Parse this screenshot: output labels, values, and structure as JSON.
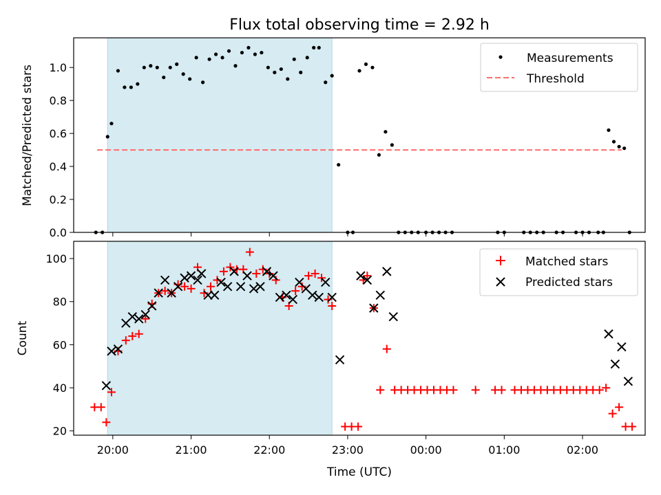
{
  "title": "Flux total observing time = 2.92 h",
  "colors": {
    "shade": "#add8e6",
    "measurement": "#000000",
    "threshold": "#ff6b6b",
    "matched": "#ff0000",
    "predicted": "#000000"
  },
  "chart_data": [
    {
      "type": "scatter",
      "ylabel": "Matched/Predicted stars",
      "ylim": [
        0,
        1.18
      ],
      "yticks": [
        "0.0",
        "0.2",
        "0.4",
        "0.6",
        "0.8",
        "1.0"
      ],
      "xlim": [
        "19:30",
        "02:48"
      ],
      "shaded_interval": [
        "19:56",
        "22:48"
      ],
      "threshold": {
        "value": 0.5,
        "x_range": [
          "19:48",
          "02:30"
        ]
      },
      "legend": {
        "position": "top-right",
        "items": [
          "Measurements",
          "Threshold"
        ]
      },
      "series": [
        {
          "name": "Measurements",
          "points": [
            [
              "19:47",
              0.0
            ],
            [
              "19:52",
              0.0
            ],
            [
              "19:56",
              0.58
            ],
            [
              "19:59",
              0.66
            ],
            [
              "20:04",
              0.98
            ],
            [
              "20:09",
              0.88
            ],
            [
              "20:14",
              0.88
            ],
            [
              "20:19",
              0.9
            ],
            [
              "20:24",
              1.0
            ],
            [
              "20:29",
              1.01
            ],
            [
              "20:34",
              1.0
            ],
            [
              "20:39",
              0.94
            ],
            [
              "20:44",
              1.0
            ],
            [
              "20:49",
              1.02
            ],
            [
              "20:54",
              0.96
            ],
            [
              "20:59",
              0.93
            ],
            [
              "21:04",
              1.06
            ],
            [
              "21:09",
              0.91
            ],
            [
              "21:14",
              1.05
            ],
            [
              "21:19",
              1.08
            ],
            [
              "21:24",
              1.06
            ],
            [
              "21:29",
              1.1
            ],
            [
              "21:34",
              1.01
            ],
            [
              "21:39",
              1.09
            ],
            [
              "21:44",
              1.12
            ],
            [
              "21:49",
              1.08
            ],
            [
              "21:54",
              1.09
            ],
            [
              "21:59",
              1.0
            ],
            [
              "22:04",
              0.97
            ],
            [
              "22:09",
              0.99
            ],
            [
              "22:14",
              0.93
            ],
            [
              "22:19",
              1.05
            ],
            [
              "22:24",
              0.97
            ],
            [
              "22:29",
              1.06
            ],
            [
              "22:34",
              1.12
            ],
            [
              "22:38",
              1.12
            ],
            [
              "22:43",
              0.91
            ],
            [
              "22:48",
              0.95
            ],
            [
              "22:53",
              0.41
            ],
            [
              "23:00",
              0.0
            ],
            [
              "23:04",
              0.0
            ],
            [
              "23:09",
              0.98
            ],
            [
              "23:14",
              1.02
            ],
            [
              "23:19",
              1.0
            ],
            [
              "23:24",
              0.47
            ],
            [
              "23:29",
              0.61
            ],
            [
              "23:34",
              0.53
            ],
            [
              "23:39",
              0.0
            ],
            [
              "23:44",
              0.0
            ],
            [
              "23:49",
              0.0
            ],
            [
              "23:54",
              0.0
            ],
            [
              "00:00",
              0.0
            ],
            [
              "00:05",
              0.0
            ],
            [
              "00:10",
              0.0
            ],
            [
              "00:15",
              0.0
            ],
            [
              "00:20",
              0.0
            ],
            [
              "00:55",
              0.0
            ],
            [
              "01:00",
              0.0
            ],
            [
              "01:15",
              0.0
            ],
            [
              "01:20",
              0.0
            ],
            [
              "01:25",
              0.0
            ],
            [
              "01:30",
              0.0
            ],
            [
              "01:40",
              0.0
            ],
            [
              "01:45",
              0.0
            ],
            [
              "01:55",
              0.0
            ],
            [
              "02:00",
              0.0
            ],
            [
              "02:05",
              0.0
            ],
            [
              "02:12",
              0.0
            ],
            [
              "02:16",
              0.0
            ],
            [
              "02:20",
              0.62
            ],
            [
              "02:24",
              0.55
            ],
            [
              "02:28",
              0.52
            ],
            [
              "02:32",
              0.51
            ],
            [
              "02:36",
              0.0
            ]
          ]
        }
      ]
    },
    {
      "type": "scatter",
      "xlabel": "Time (UTC)",
      "ylabel": "Count",
      "ylim": [
        18,
        108
      ],
      "yticks": [
        "20",
        "40",
        "60",
        "80",
        "100"
      ],
      "xlim": [
        "19:30",
        "02:48"
      ],
      "xticks": [
        "20:00",
        "21:00",
        "22:00",
        "23:00",
        "00:00",
        "01:00",
        "02:00"
      ],
      "shaded_interval": [
        "19:56",
        "22:48"
      ],
      "legend": {
        "position": "top-right",
        "items": [
          "Matched stars",
          "Predicted stars"
        ]
      },
      "series": [
        {
          "name": "Matched stars",
          "marker": "+",
          "points": [
            [
              "19:46",
              31
            ],
            [
              "19:51",
              31
            ],
            [
              "19:55",
              24
            ],
            [
              "19:59",
              38
            ],
            [
              "20:04",
              57
            ],
            [
              "20:10",
              62
            ],
            [
              "20:15",
              64
            ],
            [
              "20:20",
              65
            ],
            [
              "20:25",
              72
            ],
            [
              "20:30",
              79
            ],
            [
              "20:35",
              84
            ],
            [
              "20:40",
              85
            ],
            [
              "20:45",
              84
            ],
            [
              "20:50",
              88
            ],
            [
              "20:55",
              87
            ],
            [
              "21:00",
              86
            ],
            [
              "21:05",
              96
            ],
            [
              "21:10",
              84
            ],
            [
              "21:15",
              87
            ],
            [
              "21:20",
              90
            ],
            [
              "21:25",
              94
            ],
            [
              "21:30",
              96
            ],
            [
              "21:35",
              95
            ],
            [
              "21:40",
              95
            ],
            [
              "21:45",
              103
            ],
            [
              "21:50",
              93
            ],
            [
              "21:55",
              95
            ],
            [
              "22:00",
              93
            ],
            [
              "22:05",
              90
            ],
            [
              "22:10",
              82
            ],
            [
              "22:15",
              78
            ],
            [
              "22:20",
              85
            ],
            [
              "22:25",
              87
            ],
            [
              "22:30",
              92
            ],
            [
              "22:35",
              93
            ],
            [
              "22:40",
              91
            ],
            [
              "22:45",
              81
            ],
            [
              "22:48",
              78
            ],
            [
              "22:58",
              22
            ],
            [
              "23:03",
              22
            ],
            [
              "23:08",
              22
            ],
            [
              "23:12",
              90
            ],
            [
              "23:15",
              92
            ],
            [
              "23:20",
              77
            ],
            [
              "23:25",
              39
            ],
            [
              "23:30",
              58
            ],
            [
              "23:36",
              39
            ],
            [
              "23:41",
              39
            ],
            [
              "23:46",
              39
            ],
            [
              "23:51",
              39
            ],
            [
              "23:56",
              39
            ],
            [
              "00:01",
              39
            ],
            [
              "00:06",
              39
            ],
            [
              "00:11",
              39
            ],
            [
              "00:16",
              39
            ],
            [
              "00:21",
              39
            ],
            [
              "00:38",
              39
            ],
            [
              "00:53",
              39
            ],
            [
              "00:58",
              39
            ],
            [
              "01:08",
              39
            ],
            [
              "01:13",
              39
            ],
            [
              "01:18",
              39
            ],
            [
              "01:23",
              39
            ],
            [
              "01:28",
              39
            ],
            [
              "01:33",
              39
            ],
            [
              "01:38",
              39
            ],
            [
              "01:43",
              39
            ],
            [
              "01:48",
              39
            ],
            [
              "01:53",
              39
            ],
            [
              "01:58",
              39
            ],
            [
              "02:03",
              39
            ],
            [
              "02:08",
              39
            ],
            [
              "02:13",
              39
            ],
            [
              "02:18",
              40
            ],
            [
              "02:23",
              28
            ],
            [
              "02:28",
              31
            ],
            [
              "02:33",
              22
            ],
            [
              "02:38",
              22
            ]
          ]
        },
        {
          "name": "Predicted stars",
          "marker": "x",
          "points": [
            [
              "19:55",
              41
            ],
            [
              "19:59",
              57
            ],
            [
              "20:04",
              58
            ],
            [
              "20:10",
              70
            ],
            [
              "20:15",
              73
            ],
            [
              "20:20",
              72
            ],
            [
              "20:25",
              74
            ],
            [
              "20:30",
              78
            ],
            [
              "20:35",
              84
            ],
            [
              "20:40",
              90
            ],
            [
              "20:45",
              84
            ],
            [
              "20:50",
              87
            ],
            [
              "20:55",
              91
            ],
            [
              "21:00",
              92
            ],
            [
              "21:05",
              90
            ],
            [
              "21:08",
              93
            ],
            [
              "21:13",
              83
            ],
            [
              "21:18",
              83
            ],
            [
              "21:23",
              89
            ],
            [
              "21:28",
              87
            ],
            [
              "21:33",
              94
            ],
            [
              "21:38",
              87
            ],
            [
              "21:43",
              92
            ],
            [
              "21:48",
              86
            ],
            [
              "21:53",
              87
            ],
            [
              "21:58",
              94
            ],
            [
              "22:03",
              92
            ],
            [
              "22:08",
              82
            ],
            [
              "22:13",
              83
            ],
            [
              "22:18",
              81
            ],
            [
              "22:23",
              89
            ],
            [
              "22:28",
              86
            ],
            [
              "22:33",
              83
            ],
            [
              "22:38",
              82
            ],
            [
              "22:43",
              89
            ],
            [
              "22:48",
              82
            ],
            [
              "22:54",
              53
            ],
            [
              "23:10",
              92
            ],
            [
              "23:15",
              90
            ],
            [
              "23:20",
              77
            ],
            [
              "23:25",
              83
            ],
            [
              "23:30",
              94
            ],
            [
              "23:35",
              73
            ],
            [
              "02:20",
              65
            ],
            [
              "02:25",
              51
            ],
            [
              "02:30",
              59
            ],
            [
              "02:35",
              43
            ]
          ]
        }
      ]
    }
  ]
}
